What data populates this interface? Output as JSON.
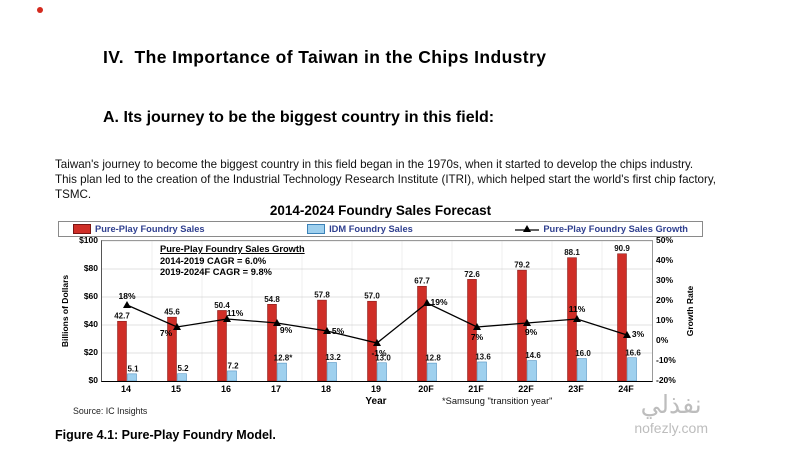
{
  "page": {
    "heading": "IV.  The Importance of Taiwan in the Chips Industry",
    "subheading": "A. Its journey to be the biggest country in this field:",
    "paragraph": "Taiwan's journey to become the biggest country in this field began in the 1970s, when it started to develop the chips industry. This plan led to the creation of the Industrial Technology Research Institute (ITRI), which helped start the world's first chip factory, TSMC.",
    "figure_caption": "Figure 4.1: Pure-Play Foundry Model.",
    "watermark_arabic": "نفذلي",
    "watermark_site": "nofezly.com"
  },
  "chart_data": {
    "type": "bar",
    "title": "2014-2024 Foundry Sales Forecast",
    "categories": [
      "14",
      "15",
      "16",
      "17",
      "18",
      "19",
      "20F",
      "21F",
      "22F",
      "23F",
      "24F"
    ],
    "series": [
      {
        "name": "Pure-Play Foundry Sales",
        "type": "bar",
        "color": "#cf2e27",
        "values": [
          42.7,
          45.6,
          50.4,
          54.8,
          57.8,
          57.0,
          67.7,
          72.6,
          79.2,
          88.1,
          90.9
        ]
      },
      {
        "name": "IDM Foundry Sales",
        "type": "bar",
        "color": "#9fd0ee",
        "values": [
          5.1,
          5.2,
          7.2,
          12.8,
          13.2,
          13.0,
          12.8,
          13.6,
          14.6,
          16.0,
          16.6
        ]
      },
      {
        "name": "Pure-Play Foundry Sales Growth",
        "type": "line",
        "color": "#000000",
        "values": [
          18,
          7,
          11,
          9,
          5,
          -1,
          19,
          7,
          9,
          11,
          3
        ]
      }
    ],
    "bar_labels": [
      [
        "42.7",
        "45.6",
        "50.4",
        "54.8",
        "57.8",
        "57.0",
        "67.7",
        "72.6",
        "79.2",
        "88.1",
        "90.9"
      ],
      [
        "5.1",
        "5.2",
        "7.2",
        "12.8*",
        "13.2",
        "13.0",
        "12.8",
        "13.6",
        "14.6",
        "16.0",
        "16.6"
      ],
      [
        "18%",
        "7%",
        "11%",
        "9%",
        "5%",
        "-1%",
        "19%",
        "7%",
        "9%",
        "11%",
        "3%"
      ]
    ],
    "ylabel_left": "Billions of Dollars",
    "ylabel_right": "Growth Rate",
    "xlabel": "Year",
    "yticks_left": [
      "$100",
      "$80",
      "$60",
      "$40",
      "$20",
      "$0"
    ],
    "yticks_right": [
      "50%",
      "40%",
      "30%",
      "20%",
      "10%",
      "0%",
      "-10%",
      "-20%"
    ],
    "ylim_left": [
      0,
      100
    ],
    "ylim_right": [
      -20,
      50
    ],
    "grid": true,
    "legend_position": "top",
    "annotation": {
      "line1": "Pure-Play Foundry Sales Growth",
      "line2": "2014-2019 CAGR = 6.0%",
      "line3": "2019-2024F CAGR = 9.8%"
    },
    "source": "Source: IC Insights",
    "footnote": "*Samsung \"transition year\""
  }
}
